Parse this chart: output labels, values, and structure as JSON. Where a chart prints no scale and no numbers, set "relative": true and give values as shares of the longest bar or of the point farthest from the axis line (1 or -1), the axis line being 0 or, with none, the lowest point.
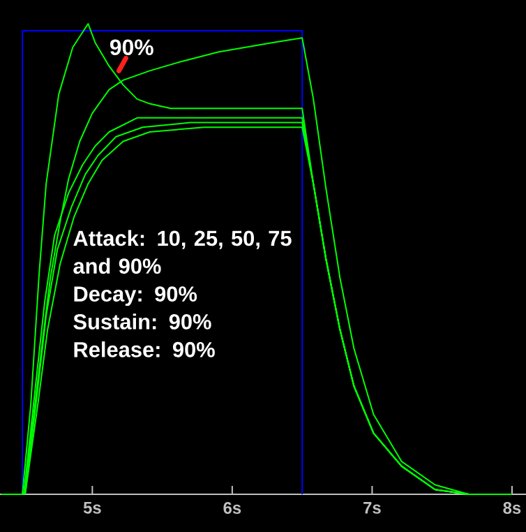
{
  "chart_data": {
    "type": "line",
    "relative": true,
    "xlim": [
      4.34,
      8.1
    ],
    "xticks": [
      {
        "value": 5,
        "label": "5s"
      },
      {
        "value": 6,
        "label": "6s"
      },
      {
        "value": 7,
        "label": "7s"
      },
      {
        "value": 8,
        "label": "8s"
      }
    ],
    "series": [
      {
        "color": "#0000ff",
        "x": [
          4.5,
          4.5,
          6.5,
          6.5
        ],
        "values": [
          0,
          0.985,
          0.985,
          0
        ]
      },
      {
        "color": "#00ff00",
        "x": [
          4.35,
          4.5,
          4.56,
          4.62,
          4.67,
          4.76,
          4.86,
          4.97,
          5.02,
          5.12,
          5.22,
          5.32,
          5.41,
          5.56,
          6.5,
          6.58,
          6.67,
          6.77,
          6.87,
          7.01,
          7.21,
          7.45,
          7.69,
          8.0
        ],
        "values": [
          0,
          0,
          0.19,
          0.47,
          0.66,
          0.85,
          0.95,
          1.0,
          0.96,
          0.91,
          0.87,
          0.84,
          0.83,
          0.82,
          0.82,
          0.66,
          0.5,
          0.35,
          0.23,
          0.13,
          0.06,
          0.01,
          0,
          0
        ]
      },
      {
        "color": "#00ff00",
        "x": [
          4.51,
          4.59,
          4.65,
          4.7,
          4.77,
          4.83,
          4.91,
          5.0,
          5.12,
          5.22,
          5.41,
          5.64,
          5.9,
          6.29,
          6.5,
          6.58,
          6.67,
          6.77,
          6.87,
          7.01,
          7.21,
          7.45,
          7.69
        ],
        "values": [
          0,
          0.19,
          0.34,
          0.46,
          0.58,
          0.67,
          0.75,
          0.81,
          0.86,
          0.88,
          0.9,
          0.92,
          0.94,
          0.96,
          0.97,
          0.84,
          0.65,
          0.46,
          0.31,
          0.17,
          0.07,
          0.02,
          0
        ]
      },
      {
        "color": "#00ff00",
        "x": [
          4.51,
          4.59,
          4.66,
          4.73,
          4.83,
          4.93,
          5.02,
          5.12,
          5.32,
          5.61,
          6.5,
          6.58,
          6.67,
          6.77,
          6.87,
          7.01,
          7.21,
          7.45,
          7.69
        ],
        "values": [
          0,
          0.22,
          0.41,
          0.55,
          0.64,
          0.7,
          0.74,
          0.77,
          0.8,
          0.8,
          0.8,
          0.66,
          0.5,
          0.35,
          0.23,
          0.13,
          0.06,
          0.01,
          0
        ]
      },
      {
        "color": "#00ff00",
        "x": [
          4.52,
          4.6,
          4.67,
          4.75,
          4.85,
          4.95,
          5.04,
          5.17,
          5.36,
          5.7,
          6.5,
          6.58,
          6.67,
          6.77,
          6.87,
          7.01,
          7.21,
          7.45,
          7.69
        ],
        "values": [
          0,
          0.2,
          0.38,
          0.52,
          0.61,
          0.68,
          0.72,
          0.76,
          0.78,
          0.79,
          0.79,
          0.66,
          0.5,
          0.35,
          0.23,
          0.13,
          0.06,
          0.01,
          0
        ]
      },
      {
        "color": "#00ff00",
        "x": [
          4.52,
          4.61,
          4.68,
          4.77,
          4.87,
          4.97,
          5.07,
          5.22,
          5.41,
          5.8,
          6.5,
          6.58,
          6.67,
          6.77,
          6.87,
          7.01,
          7.21,
          7.45,
          7.69
        ],
        "values": [
          0,
          0.19,
          0.35,
          0.49,
          0.59,
          0.66,
          0.71,
          0.75,
          0.77,
          0.78,
          0.78,
          0.66,
          0.5,
          0.35,
          0.23,
          0.13,
          0.06,
          0.01,
          0
        ]
      }
    ],
    "annotations": [
      {
        "text": "90%",
        "x": 5.19,
        "y": 0.9
      },
      "Attack: 10, 25, 50, 75 and 90%",
      "Decay: 90%",
      "Sustain: 90%",
      "Release: 90%"
    ]
  }
}
